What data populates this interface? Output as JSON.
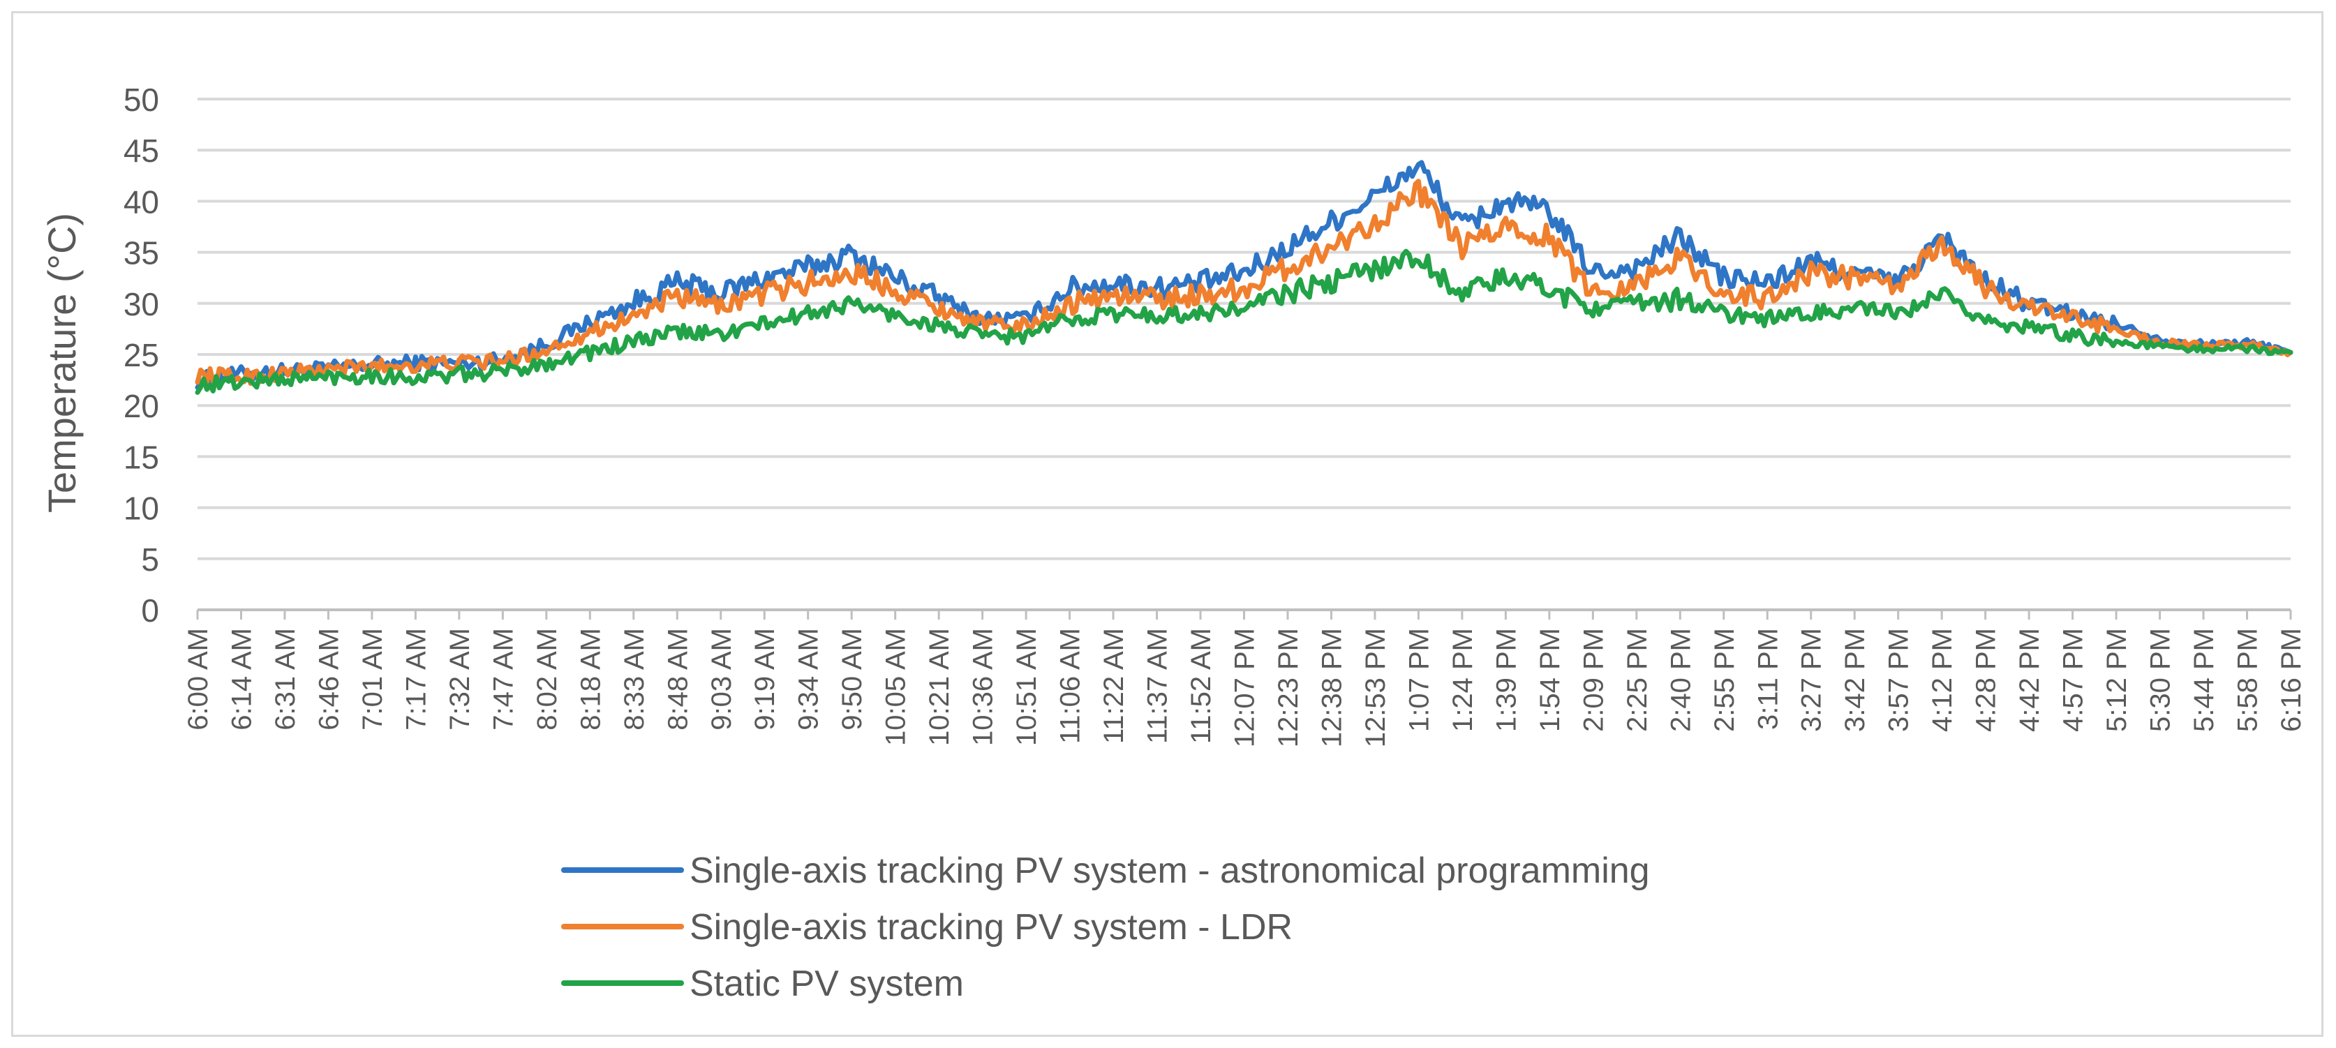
{
  "chart_data": {
    "type": "line",
    "title": "",
    "xlabel": "",
    "ylabel": "Temperature (°C)",
    "ylim": [
      0,
      50
    ],
    "yticks": [
      0,
      5,
      10,
      15,
      20,
      25,
      30,
      35,
      40,
      45,
      50
    ],
    "grid": true,
    "legend_position": "bottom",
    "categories": [
      "6:00 AM",
      "6:14 AM",
      "6:31 AM",
      "6:46 AM",
      "7:01 AM",
      "7:17 AM",
      "7:32 AM",
      "7:47 AM",
      "8:02 AM",
      "8:18 AM",
      "8:33 AM",
      "8:48 AM",
      "9:03 AM",
      "9:19 AM",
      "9:34 AM",
      "9:50 AM",
      "10:05 AM",
      "10:21 AM",
      "10:36 AM",
      "10:51 AM",
      "11:06 AM",
      "11:22 AM",
      "11:37 AM",
      "11:52 AM",
      "12:07 PM",
      "12:23 PM",
      "12:38 PM",
      "12:53 PM",
      "1:07 PM",
      "1:24 PM",
      "1:39 PM",
      "1:54 PM",
      "2:09 PM",
      "2:25 PM",
      "2:40 PM",
      "2:55 PM",
      "3:11 PM",
      "3:27 PM",
      "3:42 PM",
      "3:57 PM",
      "4:12 PM",
      "4:28 PM",
      "4:42 PM",
      "4:57 PM",
      "5:12 PM",
      "5:30 PM",
      "5:44 PM",
      "5:58 PM",
      "6:16 PM"
    ],
    "series": [
      {
        "name": "Single-axis tracking PV system - astronomical programming",
        "color": "#2e75c6",
        "values": [
          22.5,
          23.1,
          23.4,
          23.6,
          24.0,
          24.2,
          24.1,
          24.5,
          26.0,
          28.2,
          30.0,
          32.0,
          31.0,
          32.5,
          33.5,
          34.8,
          32.5,
          30.5,
          28.5,
          28.5,
          31.5,
          32.0,
          31.5,
          32.0,
          33.0,
          35.5,
          38.0,
          40.5,
          43.5,
          37.5,
          40.0,
          39.0,
          33.0,
          33.5,
          36.5,
          32.5,
          32.0,
          34.0,
          33.0,
          32.0,
          36.5,
          32.0,
          30.0,
          29.0,
          28.0,
          26.5,
          26.0,
          26.2,
          25.2
        ]
      },
      {
        "name": "Single-axis tracking PV system - LDR",
        "color": "#f07f2e",
        "values": [
          23.0,
          22.8,
          23.2,
          23.5,
          23.8,
          24.0,
          24.2,
          24.3,
          25.5,
          27.2,
          28.8,
          30.5,
          29.8,
          31.0,
          32.0,
          33.0,
          31.5,
          29.5,
          28.0,
          27.8,
          30.0,
          30.8,
          30.5,
          30.8,
          31.5,
          33.5,
          35.5,
          38.0,
          41.0,
          35.5,
          37.5,
          36.5,
          31.0,
          32.0,
          34.5,
          31.0,
          30.5,
          33.0,
          32.5,
          31.5,
          36.0,
          31.5,
          29.8,
          28.5,
          27.5,
          26.2,
          25.8,
          26.0,
          25.2
        ]
      },
      {
        "name": "Static PV system",
        "color": "#22a347",
        "values": [
          22.0,
          22.3,
          22.6,
          22.8,
          23.0,
          22.7,
          23.0,
          23.3,
          24.2,
          25.2,
          26.2,
          27.2,
          27.0,
          28.0,
          29.0,
          30.0,
          28.8,
          27.8,
          26.8,
          26.8,
          28.5,
          29.0,
          28.8,
          29.0,
          29.5,
          31.0,
          32.0,
          33.5,
          34.5,
          31.0,
          32.5,
          31.5,
          29.5,
          30.0,
          30.5,
          29.0,
          28.5,
          29.0,
          29.5,
          29.0,
          30.5,
          28.5,
          27.5,
          27.0,
          26.2,
          25.8,
          25.5,
          25.6,
          25.2
        ]
      }
    ]
  }
}
